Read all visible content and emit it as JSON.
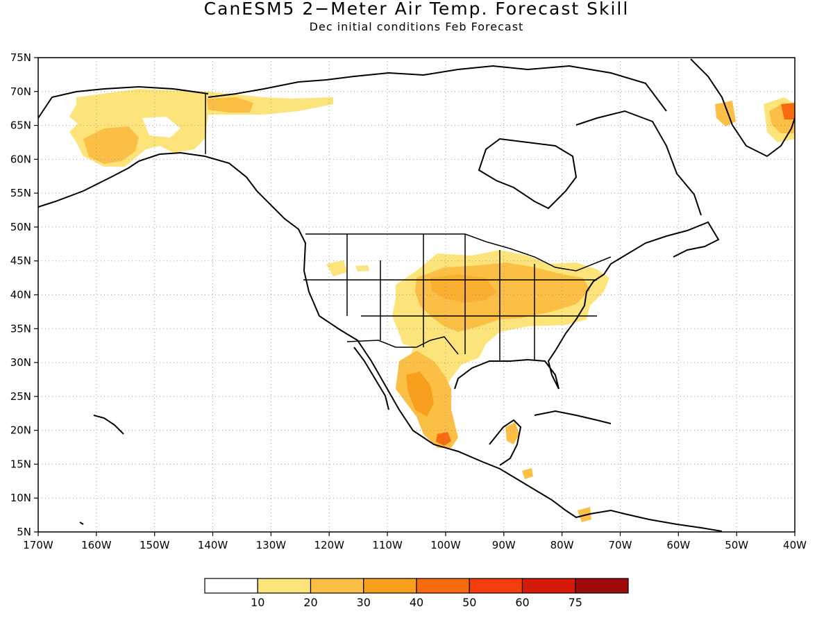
{
  "title": "CanESM5 2−Meter Air Temp. Forecast Skill",
  "subtitle": "Dec initial conditions  Feb Forecast",
  "map": {
    "lon_range": [
      -170,
      -40
    ],
    "lat_range": [
      5,
      75
    ],
    "lat_labels": [
      "75N",
      "70N",
      "65N",
      "60N",
      "55N",
      "50N",
      "45N",
      "40N",
      "35N",
      "30N",
      "25N",
      "20N",
      "15N",
      "10N",
      "5N"
    ],
    "lon_labels": [
      "170W",
      "160W",
      "150W",
      "140W",
      "130W",
      "120W",
      "110W",
      "100W",
      "90W",
      "80W",
      "70W",
      "60W",
      "50W",
      "40W"
    ],
    "gridlines": "dotted"
  },
  "colorbar": {
    "labels": [
      "10",
      "20",
      "30",
      "40",
      "50",
      "60",
      "75"
    ],
    "colors": [
      "#ffffff",
      "#fde47a",
      "#fbbf45",
      "#f99f1e",
      "#f86a0e",
      "#f43d0c",
      "#d61a0a",
      "#9e0a08"
    ]
  }
}
